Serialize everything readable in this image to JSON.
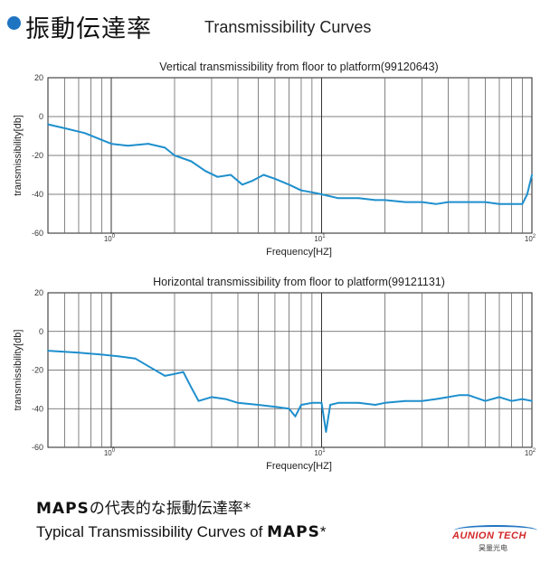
{
  "header": {
    "title_jp": "振動伝達率",
    "title_en": "Transmissibility Curves"
  },
  "footer": {
    "jp_brand": "MAPS",
    "jp_text": "の代表的な振動伝達率*",
    "en_text": "Typical Transmissibility Curves of ",
    "en_brand": "MAPS",
    "en_suffix": "*"
  },
  "logo": {
    "main": "AUNION TECH",
    "sub": "昊量光电"
  },
  "colors": {
    "curve": "#1e8fcd",
    "accent": "#1f74c2"
  },
  "chart_data": [
    {
      "type": "line",
      "title": "Vertical transmissibility from floor to platform(99120643)",
      "xlabel": "Frequency[HZ]",
      "ylabel": "transmissibility[db]",
      "x_scale": "log",
      "xlim": [
        0.5,
        100
      ],
      "ylim": [
        -60,
        20
      ],
      "yticks": [
        "20",
        "0",
        "-20",
        "-40",
        "-60"
      ],
      "xtick_labels": [
        {
          "value": 1,
          "base": "10",
          "exp": "0"
        },
        {
          "value": 10,
          "base": "10",
          "exp": "1"
        },
        {
          "value": 100,
          "base": "10",
          "exp": "2"
        }
      ],
      "grid": true,
      "series": [
        {
          "x": [
            0.5,
            0.6,
            0.75,
            0.9,
            1.0,
            1.2,
            1.5,
            1.8,
            2.0,
            2.4,
            2.8,
            3.2,
            3.7,
            4.2,
            4.7,
            5.3,
            6.0,
            7.0,
            8.0,
            9.0,
            10,
            12,
            15,
            18,
            20,
            25,
            30,
            35,
            40,
            50,
            60,
            70,
            80,
            90,
            95,
            100
          ],
          "y": [
            -4,
            -6,
            -8.5,
            -12,
            -14,
            -15,
            -14,
            -16,
            -20,
            -23,
            -28,
            -31,
            -30,
            -35,
            -33,
            -30,
            -32,
            -35,
            -38,
            -39,
            -40,
            -42,
            -42,
            -43,
            -43,
            -44,
            -44,
            -45,
            -44,
            -44,
            -44,
            -45,
            -45,
            -45,
            -40,
            -30
          ]
        }
      ]
    },
    {
      "type": "line",
      "title": "Horizontal transmissibility from floor to platform(99121131)",
      "xlabel": "Frequency[HZ]",
      "ylabel": "transmissibility[db]",
      "x_scale": "log",
      "xlim": [
        0.5,
        100
      ],
      "ylim": [
        -60,
        20
      ],
      "yticks": [
        "20",
        "0",
        "-20",
        "-40",
        "-60"
      ],
      "xtick_labels": [
        {
          "value": 1,
          "base": "10",
          "exp": "0"
        },
        {
          "value": 10,
          "base": "10",
          "exp": "1"
        },
        {
          "value": 100,
          "base": "10",
          "exp": "2"
        }
      ],
      "grid": true,
      "series": [
        {
          "x": [
            0.5,
            0.7,
            0.9,
            1.1,
            1.3,
            1.5,
            1.8,
            2.0,
            2.2,
            2.4,
            2.6,
            3.0,
            3.5,
            4.0,
            5.0,
            6.0,
            7.0,
            7.5,
            8.0,
            9.0,
            10,
            10.5,
            11,
            12,
            15,
            18,
            20,
            25,
            30,
            35,
            40,
            45,
            50,
            60,
            70,
            80,
            90,
            100
          ],
          "y": [
            -10,
            -11,
            -12,
            -13,
            -14,
            -18,
            -23,
            -22,
            -21,
            -29,
            -36,
            -34,
            -35,
            -37,
            -38,
            -39,
            -40,
            -44,
            -38,
            -37,
            -37,
            -52,
            -38,
            -37,
            -37,
            -38,
            -37,
            -36,
            -36,
            -35,
            -34,
            -33,
            -33,
            -36,
            -34,
            -36,
            -35,
            -36
          ]
        }
      ]
    }
  ]
}
